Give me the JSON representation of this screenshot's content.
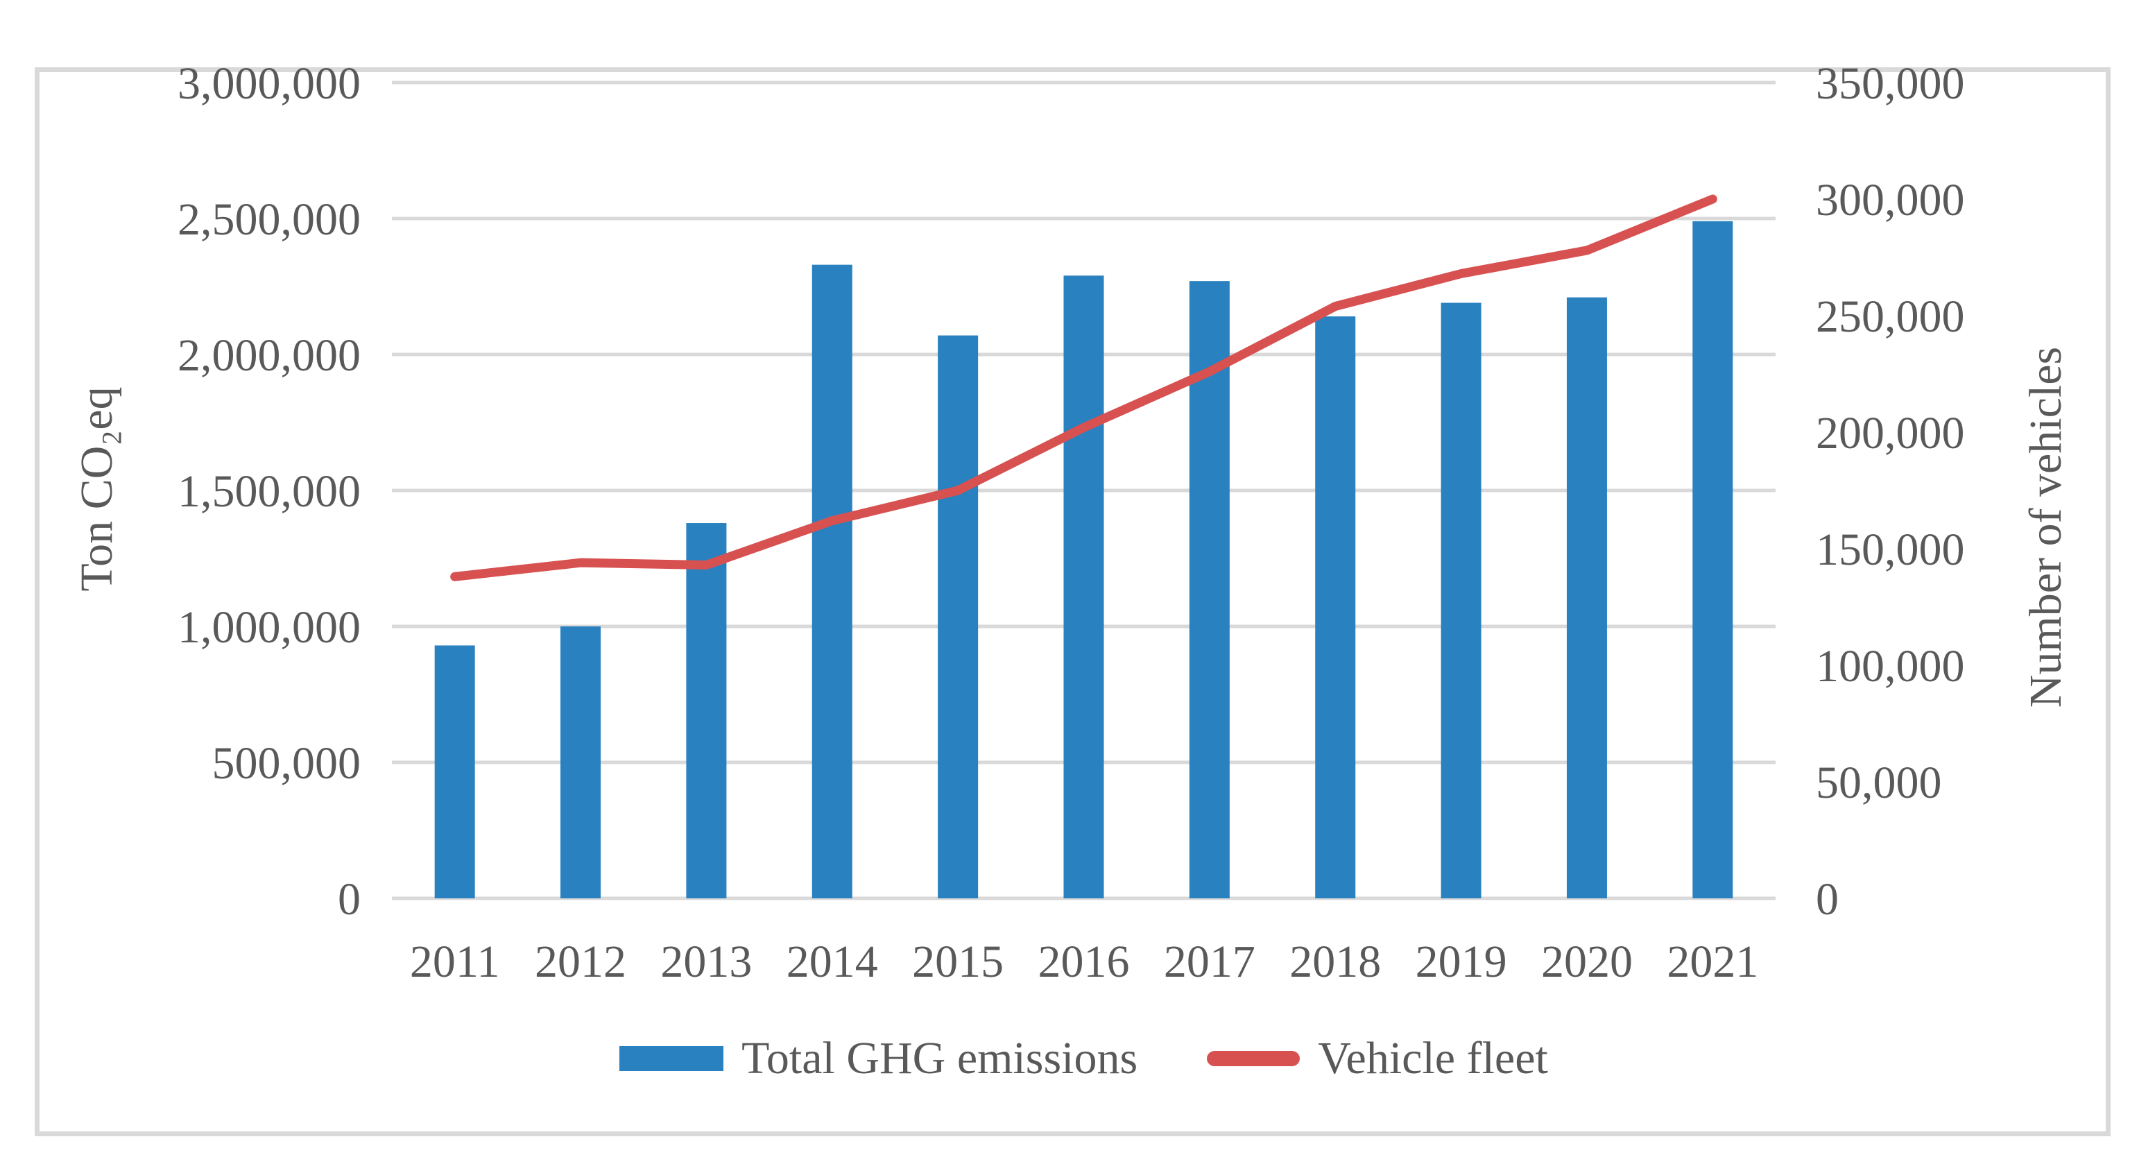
{
  "chart_data": {
    "type": "combo-bar-line",
    "categories": [
      "2011",
      "2012",
      "2013",
      "2014",
      "2015",
      "2016",
      "2017",
      "2018",
      "2019",
      "2020",
      "2021"
    ],
    "series": [
      {
        "name": "Total GHG emissions",
        "type": "bar",
        "axis": "left",
        "color": "#2a81bf",
        "values": [
          930000,
          1000000,
          1380000,
          2330000,
          2070000,
          2290000,
          2270000,
          2140000,
          2190000,
          2210000,
          2490000
        ]
      },
      {
        "name": "Vehicle fleet",
        "type": "line",
        "axis": "right",
        "color": "#d85151",
        "values": [
          138000,
          144000,
          143000,
          162000,
          175000,
          202000,
          226000,
          254000,
          268000,
          278000,
          300000
        ]
      }
    ],
    "left_axis": {
      "label": "Ton CO₂eq",
      "min": 0,
      "max": 3000000,
      "tick_step": 500000,
      "ticks": [
        "0",
        "500,000",
        "1,000,000",
        "1,500,000",
        "2,000,000",
        "2,500,000",
        "3,000,000"
      ]
    },
    "right_axis": {
      "label": "Number of vehicles",
      "min": 0,
      "max": 350000,
      "tick_step": 50000,
      "ticks": [
        "0",
        "50,000",
        "100,000",
        "150,000",
        "200,000",
        "250,000",
        "300,000",
        "350,000"
      ]
    },
    "grid": true,
    "legend_position": "bottom"
  },
  "colors": {
    "text": "#595959",
    "gridline": "#d9d9d9",
    "figure_border": "#d9d9d9",
    "background": "#ffffff"
  }
}
